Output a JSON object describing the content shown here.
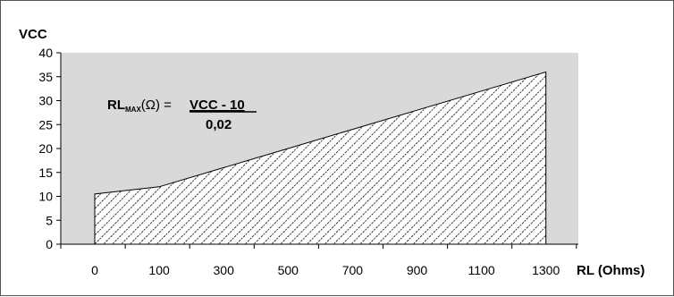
{
  "chart_data": {
    "type": "area",
    "ylabel": "VCC",
    "xlabel": "RL (Ohms)",
    "ylim": [
      0,
      40
    ],
    "y_ticks": [
      0,
      5,
      10,
      15,
      20,
      25,
      30,
      35,
      40
    ],
    "x_categories": [
      "0",
      "100",
      "300",
      "500",
      "700",
      "900",
      "1100",
      "1300"
    ],
    "series": [
      {
        "x": [
          0,
          100,
          300,
          500,
          700,
          900,
          1100,
          1300
        ],
        "values": [
          10.5,
          12,
          16,
          20,
          24,
          28,
          32,
          36
        ]
      }
    ],
    "grid": false,
    "plot_background": "#d9d9d9",
    "fill_pattern": "diagonal-hatch",
    "annotation": {
      "lhs_main": "RL",
      "lhs_sub": "MAX",
      "lhs_unit": "(Ω) =",
      "numerator": "VCC - 10",
      "denominator": "0,02"
    }
  }
}
